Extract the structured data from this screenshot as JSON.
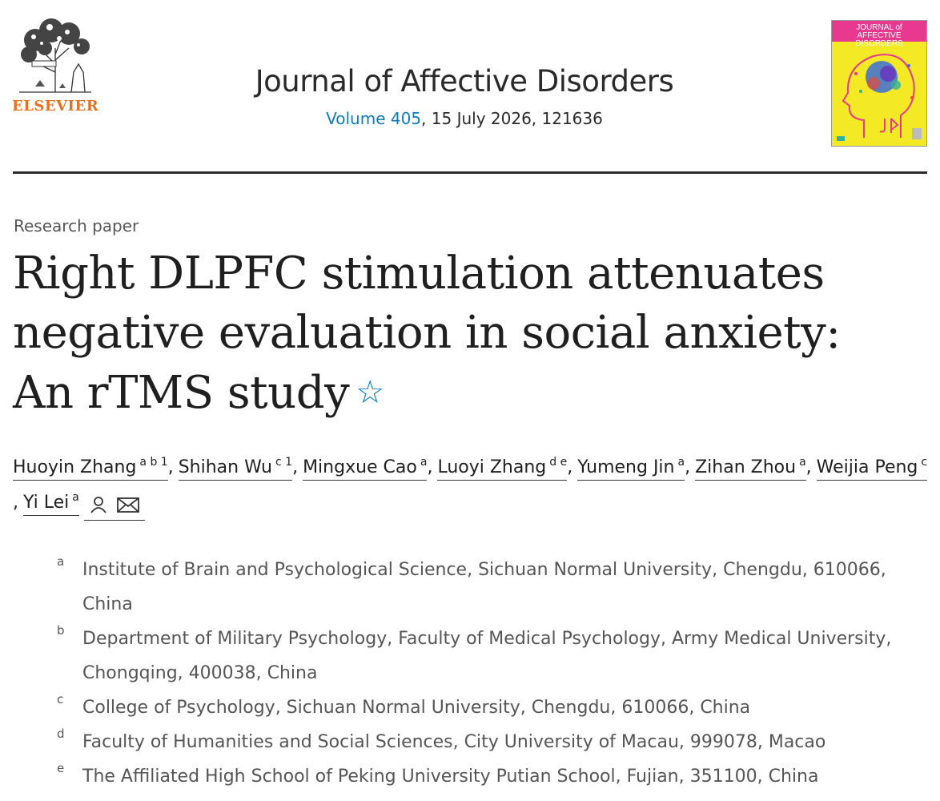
{
  "publisher": {
    "name": "ELSEVIER",
    "logo_icon": "elsevier-tree-logo"
  },
  "journal": {
    "title": "Journal of Affective Disorders",
    "volume_label": "Volume 405",
    "issue_rest": ", 15 July 2026, 121636",
    "cover": {
      "band_text": "JOURNAL of AFFECTIVE DISORDERS",
      "colors": {
        "background": "#f3e924",
        "band": "#e8398e"
      }
    }
  },
  "article": {
    "type": "Research paper",
    "title": "Right DLPFC stimulation attenuates negative evaluation in social anxiety: An rTMS study",
    "star_icon": "star-outline-icon"
  },
  "authors": [
    {
      "name": "Huoyin Zhang",
      "sup": "a b 1"
    },
    {
      "name": "Shihan Wu",
      "sup": "c 1"
    },
    {
      "name": "Mingxue Cao",
      "sup": "a"
    },
    {
      "name": "Luoyi Zhang",
      "sup": "d e"
    },
    {
      "name": "Yumeng Jin",
      "sup": "a"
    },
    {
      "name": "Zihan Zhou",
      "sup": "a"
    },
    {
      "name": "Weijia Peng",
      "sup": "c"
    },
    {
      "name": "Yi Lei",
      "sup": "a"
    }
  ],
  "author_separator": ",",
  "affiliations": [
    {
      "label": "a",
      "text": "Institute of Brain and Psychological Science, Sichuan Normal University, Chengdu, 610066, China"
    },
    {
      "label": "b",
      "text": "Department of Military Psychology, Faculty of Medical Psychology, Army Medical University, Chongqing, 400038, China"
    },
    {
      "label": "c",
      "text": "College of Psychology, Sichuan Normal University, Chengdu, 610066, China"
    },
    {
      "label": "d",
      "text": "Faculty of Humanities and Social Sciences, City University of Macau, 999078, Macao"
    },
    {
      "label": "e",
      "text": "The Affiliated High School of Peking University Putian School, Fujian, 351100, China"
    }
  ],
  "colors": {
    "link": "#0c7dbb",
    "publisher_orange": "#e9711c",
    "text": "#1f1f1f",
    "muted": "#555555"
  }
}
